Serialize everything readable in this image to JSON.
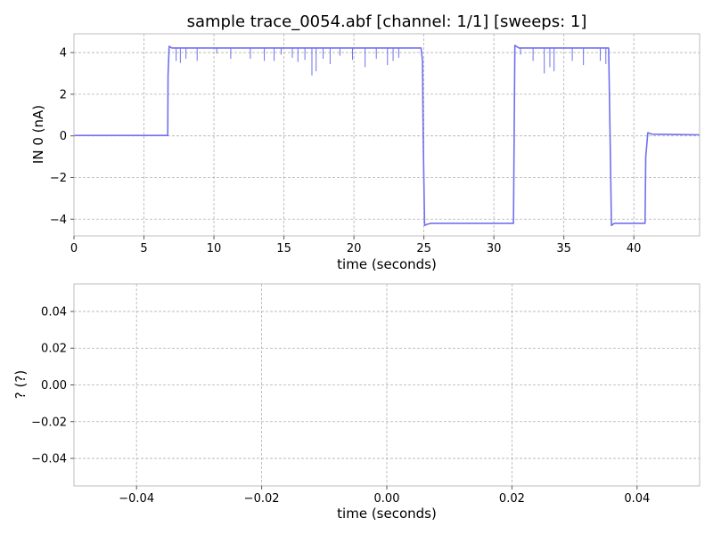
{
  "chart_data": [
    {
      "type": "line",
      "title": "sample trace_0054.abf [channel: 1/1] [sweeps: 1]",
      "xlabel": "time (seconds)",
      "ylabel": "IN 0 (nA)",
      "xlim": [
        0,
        44.7
      ],
      "ylim": [
        -4.8,
        4.9
      ],
      "xticks": [
        0,
        5,
        10,
        15,
        20,
        25,
        30,
        35,
        40
      ],
      "xtick_labels": [
        "0",
        "5",
        "10",
        "15",
        "20",
        "25",
        "30",
        "35",
        "40"
      ],
      "yticks": [
        -4,
        -2,
        0,
        2,
        4
      ],
      "ytick_labels": [
        "−4",
        "−2",
        "0",
        "2",
        "4"
      ],
      "grid": true,
      "series": [
        {
          "color": "#7070f0",
          "x": [
            0,
            6.7,
            6.72,
            6.8,
            7.0,
            24.8,
            24.9,
            24.95,
            25.05,
            25.2,
            25.5,
            31.4,
            31.45,
            31.5,
            31.6,
            31.8,
            38.2,
            38.3,
            38.4,
            38.6,
            40.8,
            40.85,
            41.0,
            41.3,
            44.7
          ],
          "y": [
            0.02,
            0.02,
            2.9,
            4.3,
            4.22,
            4.22,
            3.6,
            -0.05,
            -4.3,
            -4.25,
            -4.2,
            -4.2,
            0.05,
            4.35,
            4.3,
            4.22,
            4.22,
            0.1,
            -4.3,
            -4.2,
            -4.2,
            -1.0,
            0.15,
            0.08,
            0.05
          ]
        }
      ],
      "spikes": [
        {
          "x": 7.3,
          "y": 3.6
        },
        {
          "x": 7.6,
          "y": 3.5
        },
        {
          "x": 8.0,
          "y": 3.7
        },
        {
          "x": 8.8,
          "y": 3.6
        },
        {
          "x": 10.2,
          "y": 3.95
        },
        {
          "x": 11.2,
          "y": 3.7
        },
        {
          "x": 12.6,
          "y": 3.7
        },
        {
          "x": 13.6,
          "y": 3.6
        },
        {
          "x": 14.3,
          "y": 3.6
        },
        {
          "x": 14.8,
          "y": 3.9
        },
        {
          "x": 15.6,
          "y": 3.75
        },
        {
          "x": 16.0,
          "y": 3.55
        },
        {
          "x": 16.5,
          "y": 3.65
        },
        {
          "x": 17.0,
          "y": 2.9
        },
        {
          "x": 17.3,
          "y": 3.1
        },
        {
          "x": 17.8,
          "y": 3.7
        },
        {
          "x": 18.3,
          "y": 3.45
        },
        {
          "x": 19.0,
          "y": 3.85
        },
        {
          "x": 19.9,
          "y": 3.65
        },
        {
          "x": 20.8,
          "y": 3.3
        },
        {
          "x": 21.6,
          "y": 3.7
        },
        {
          "x": 22.4,
          "y": 3.4
        },
        {
          "x": 22.8,
          "y": 3.6
        },
        {
          "x": 23.2,
          "y": 3.75
        },
        {
          "x": 31.9,
          "y": 3.9
        },
        {
          "x": 32.8,
          "y": 3.6
        },
        {
          "x": 33.6,
          "y": 3.0
        },
        {
          "x": 34.0,
          "y": 3.3
        },
        {
          "x": 34.3,
          "y": 3.1
        },
        {
          "x": 35.6,
          "y": 3.6
        },
        {
          "x": 36.4,
          "y": 3.4
        },
        {
          "x": 37.6,
          "y": 3.6
        },
        {
          "x": 38.0,
          "y": 3.45
        }
      ]
    },
    {
      "type": "line",
      "title": "",
      "xlabel": "time (seconds)",
      "ylabel": "? (?)",
      "xlim": [
        -0.05,
        0.05
      ],
      "ylim": [
        -0.055,
        0.055
      ],
      "xticks": [
        -0.04,
        -0.02,
        0.0,
        0.02,
        0.04
      ],
      "xtick_labels": [
        "−0.04",
        "−0.02",
        "0.00",
        "0.02",
        "0.04"
      ],
      "yticks": [
        -0.04,
        -0.02,
        0.0,
        0.02,
        0.04
      ],
      "ytick_labels": [
        "−0.04",
        "−0.02",
        "0.00",
        "0.02",
        "0.04"
      ],
      "grid": true,
      "series": []
    }
  ]
}
